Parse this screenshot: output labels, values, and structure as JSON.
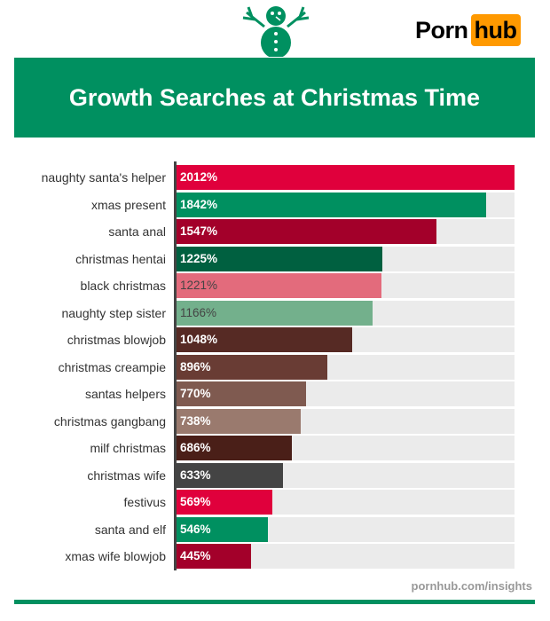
{
  "logo": {
    "part1": "Porn",
    "part2": "hub",
    "accent": "#ff9900"
  },
  "source": "pornhub.com/insights",
  "chart_data": {
    "type": "bar",
    "orientation": "horizontal",
    "title": "Growth Searches at Christmas Time",
    "categories": [
      "naughty santa's helper",
      "xmas present",
      "santa anal",
      "christmas hentai",
      "black christmas",
      "naughty step sister",
      "christmas blowjob",
      "christmas creampie",
      "santas helpers",
      "christmas gangbang",
      "milf christmas",
      "christmas wife",
      "festivus",
      "santa and elf",
      "xmas wife blowjob"
    ],
    "values": [
      2012,
      1842,
      1547,
      1225,
      1221,
      1166,
      1048,
      896,
      770,
      738,
      686,
      633,
      569,
      546,
      445
    ],
    "labels": [
      "2012%",
      "1842%",
      "1547%",
      "1225%",
      "1221%",
      "1166%",
      "1048%",
      "896%",
      "770%",
      "738%",
      "686%",
      "633%",
      "569%",
      "546%",
      "445%"
    ],
    "colors": [
      "#e0003c",
      "#009060",
      "#a3002a",
      "#006040",
      "#e36b7c",
      "#73b08c",
      "#562a24",
      "#693c34",
      "#7f5a50",
      "#9a7a6e",
      "#4a1f18",
      "#444444",
      "#e0003c",
      "#009060",
      "#a3002a"
    ],
    "xlim": [
      0,
      2012
    ],
    "grid": false
  }
}
